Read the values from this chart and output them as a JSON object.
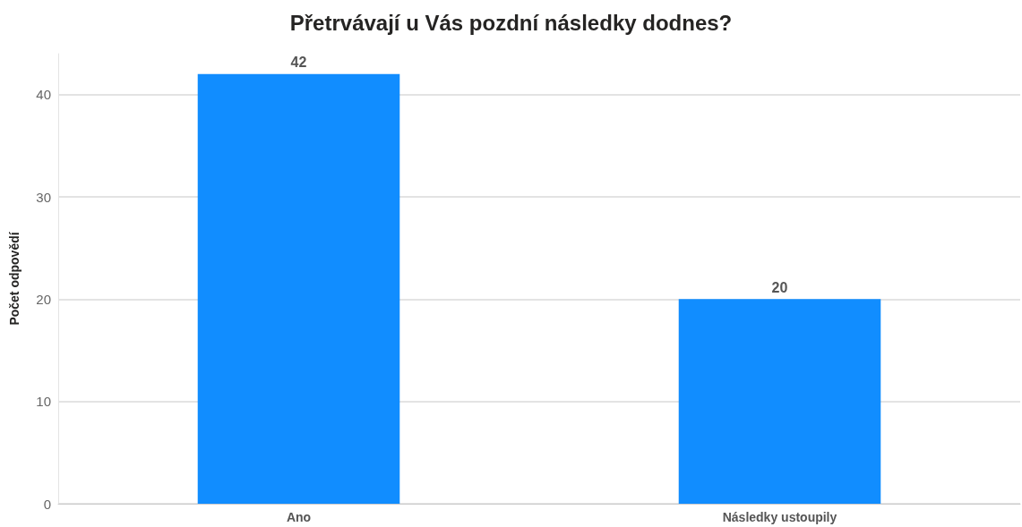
{
  "chart_data": {
    "type": "bar",
    "title": "Přetrvávají u Vás pozdní následky dodnes?",
    "ylabel": "Počet odpovědí",
    "categories": [
      "Ano",
      "Následky ustoupily"
    ],
    "values": [
      42,
      20
    ],
    "color": "#118dff",
    "ylim": [
      0,
      44
    ],
    "yticks": [
      0,
      10,
      20,
      30,
      40
    ],
    "grid": "y",
    "data_labels": true
  }
}
